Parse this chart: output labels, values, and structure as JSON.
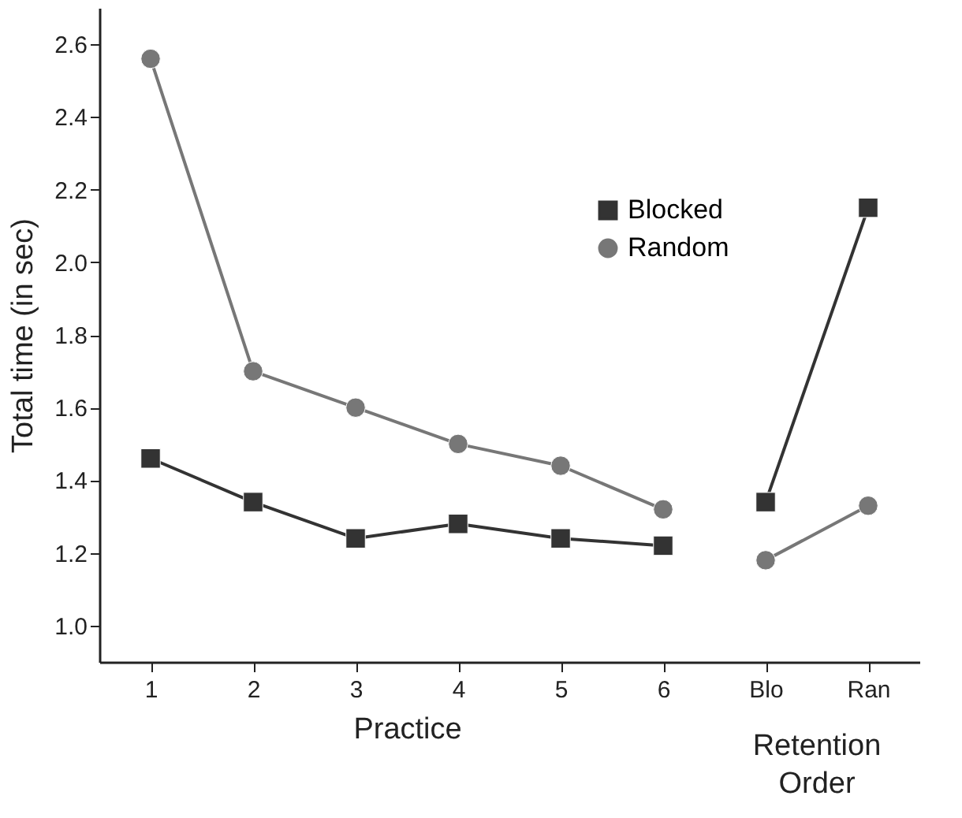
{
  "chart_data": {
    "type": "line",
    "categories": [
      "1",
      "2",
      "3",
      "4",
      "5",
      "6",
      "Blo",
      "Ran"
    ],
    "xlabel": "Practice",
    "ylabel": "Total time (in sec)",
    "annotations": [
      "Retention Order"
    ],
    "ylim": [
      0.9,
      2.7
    ],
    "yticks": [
      {
        "value": 1,
        "label": "1.0"
      },
      1.2,
      1.4,
      1.6,
      1.8,
      {
        "value": 2,
        "label": "2.0"
      },
      2.2,
      2.4,
      2.6
    ],
    "legend": "top right",
    "grid": false,
    "line_style": "solid",
    "series": [
      {
        "name": "Blocked",
        "color": "#333333",
        "marker": "square",
        "values": [
          1.46,
          1.34,
          1.24,
          1.28,
          1.24,
          1.22,
          null,
          null
        ]
      },
      {
        "name": "Random",
        "color": "#777777",
        "marker": "circle",
        "values": [
          2.56,
          1.7,
          1.6,
          1.5,
          1.44,
          1.32,
          null,
          null
        ]
      },
      {
        "color": "#333333",
        "marker": "square",
        "values": [
          null,
          null,
          null,
          null,
          null,
          null,
          1.34,
          2.15
        ]
      },
      {
        "color": "#777777",
        "marker": "circle",
        "values": [
          null,
          null,
          null,
          null,
          null,
          null,
          1.18,
          1.33
        ]
      }
    ]
  }
}
